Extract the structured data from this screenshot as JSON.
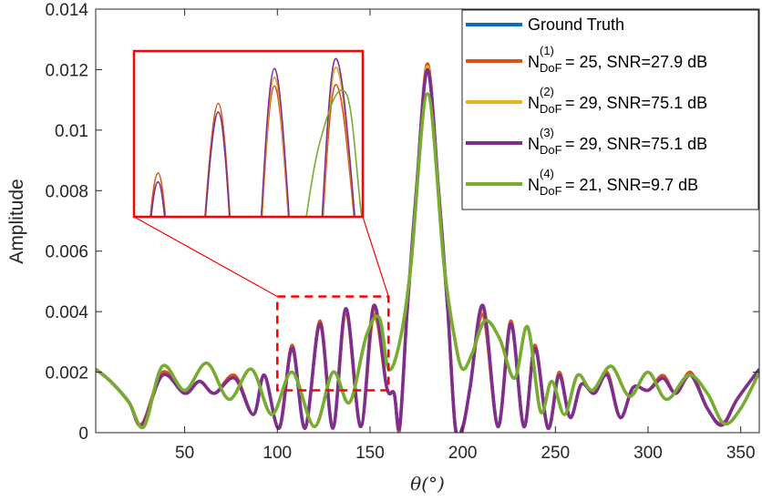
{
  "colors": {
    "ground_truth": "#0072BD",
    "n1": "#D95319",
    "n2": "#EDB120",
    "n3": "#7E2F8E",
    "n4": "#77AC30",
    "zoom": "#FF0000"
  },
  "chart_data": {
    "type": "line",
    "title": "",
    "xlabel": "θ(°)",
    "ylabel": "Amplitude",
    "xlim": [
      2,
      360
    ],
    "ylim": [
      0,
      0.014
    ],
    "xticks": [
      "50",
      "100",
      "150",
      "200",
      "250",
      "300",
      "350"
    ],
    "yticks": [
      "0",
      "0.002",
      "0.004",
      "0.006",
      "0.008",
      "0.01",
      "0.012",
      "0.014"
    ],
    "grid": false,
    "legend_position": "top-right",
    "legend": [
      {
        "key": "ground_truth",
        "main": "Ground Truth",
        "sup": "",
        "sub": "",
        "rest": ""
      },
      {
        "key": "n1",
        "main": "N",
        "sup": "(1)",
        "sub": "DoF",
        "rest": "= 25, SNR=27.9 dB"
      },
      {
        "key": "n2",
        "main": "N",
        "sup": "(2)",
        "sub": "DoF",
        "rest": "= 29, SNR=75.1 dB"
      },
      {
        "key": "n3",
        "main": "N",
        "sup": "(3)",
        "sub": "DoF",
        "rest": "= 29, SNR=75.1 dB"
      },
      {
        "key": "n4",
        "main": "N",
        "sup": "(4)",
        "sub": "DoF",
        "rest": "= 21, SNR=9.7 dB"
      }
    ],
    "zoom_region": {
      "x": [
        100,
        160
      ],
      "y": [
        0.0014,
        0.0045
      ]
    },
    "series": [
      {
        "key": "ground_truth",
        "x": [
          2,
          10,
          20,
          27,
          38,
          50,
          58,
          66,
          77,
          87,
          93,
          101,
          108,
          115,
          123,
          130,
          137,
          145,
          152,
          159,
          163,
          166,
          170,
          175,
          181,
          187,
          192,
          196,
          200,
          204,
          211,
          219,
          226,
          233,
          239,
          246,
          252,
          258,
          264,
          271,
          278,
          285,
          292,
          300,
          308,
          315,
          323,
          332,
          340,
          348,
          360
        ],
        "y": [
          0.0021,
          0.0017,
          0.001,
          0.00025,
          0.0019,
          0.0013,
          0.0017,
          0.0013,
          0.0018,
          0.0006,
          0.0019,
          0.00015,
          0.0028,
          0.00015,
          0.0036,
          0.00015,
          0.004,
          0.0002,
          0.0041,
          0.0015,
          0.0013,
          0.0002,
          0.004,
          0.008,
          0.0121,
          0.008,
          0.004,
          0.0002,
          0.0002,
          0.0015,
          0.0041,
          0.0002,
          0.0036,
          0.0002,
          0.0028,
          0.00015,
          0.0019,
          0.0005,
          0.0016,
          0.0013,
          0.0019,
          0.0005,
          0.0015,
          0.0014,
          0.0018,
          0.0013,
          0.0019,
          0.0008,
          0.00025,
          0.0011,
          0.0021
        ]
      },
      {
        "key": "n1",
        "x": [
          2,
          10,
          20,
          27,
          38,
          50,
          58,
          66,
          77,
          87,
          93,
          101,
          108,
          115,
          123,
          130,
          137,
          145,
          152,
          159,
          163,
          166,
          170,
          175,
          181,
          187,
          192,
          196,
          200,
          204,
          211,
          219,
          226,
          233,
          239,
          246,
          252,
          258,
          264,
          271,
          278,
          285,
          292,
          300,
          308,
          315,
          323,
          332,
          340,
          348,
          360
        ],
        "y": [
          0.0021,
          0.0017,
          0.001,
          0.0003,
          0.002,
          0.0013,
          0.0017,
          0.0013,
          0.0019,
          0.0006,
          0.0019,
          0.00015,
          0.0029,
          0.00015,
          0.0037,
          0.00015,
          0.0039,
          0.0002,
          0.0039,
          0.0015,
          0.0013,
          0.0001,
          0.004,
          0.008,
          0.0122,
          0.008,
          0.004,
          0.0001,
          0.0001,
          0.0015,
          0.0039,
          0.0002,
          0.0037,
          0.0002,
          0.0029,
          0.00015,
          0.002,
          0.0005,
          0.0016,
          0.0013,
          0.002,
          0.0005,
          0.0015,
          0.0014,
          0.0019,
          0.0013,
          0.002,
          0.0008,
          0.0003,
          0.0011,
          0.0021
        ]
      },
      {
        "key": "n2",
        "x": [
          2,
          10,
          20,
          27,
          38,
          50,
          58,
          66,
          77,
          87,
          93,
          101,
          108,
          115,
          123,
          130,
          137,
          145,
          152,
          159,
          163,
          166,
          170,
          175,
          181,
          187,
          192,
          196,
          200,
          204,
          211,
          219,
          226,
          233,
          239,
          246,
          252,
          258,
          264,
          271,
          278,
          285,
          292,
          300,
          308,
          315,
          323,
          332,
          340,
          348,
          360
        ],
        "y": [
          0.0021,
          0.0017,
          0.001,
          0.00025,
          0.0019,
          0.0013,
          0.0017,
          0.0013,
          0.0018,
          0.0006,
          0.0019,
          0.00015,
          0.0028,
          0.00015,
          0.0036,
          0.00015,
          0.004,
          0.0002,
          0.0041,
          0.0015,
          0.0013,
          0.0002,
          0.004,
          0.008,
          0.0121,
          0.008,
          0.004,
          0.0002,
          0.0002,
          0.0015,
          0.0041,
          0.0002,
          0.0036,
          0.0002,
          0.0028,
          0.00015,
          0.0019,
          0.0005,
          0.0016,
          0.0013,
          0.0019,
          0.0005,
          0.0015,
          0.0014,
          0.0018,
          0.0013,
          0.0019,
          0.0008,
          0.00025,
          0.0011,
          0.0021
        ]
      },
      {
        "key": "n3",
        "x": [
          2,
          10,
          20,
          27,
          38,
          50,
          58,
          66,
          77,
          87,
          93,
          101,
          108,
          115,
          123,
          130,
          137,
          145,
          152,
          159,
          163,
          166,
          170,
          175,
          181,
          187,
          192,
          196,
          200,
          204,
          211,
          219,
          226,
          233,
          239,
          246,
          252,
          258,
          264,
          271,
          278,
          285,
          292,
          300,
          308,
          315,
          323,
          332,
          340,
          348,
          360
        ],
        "y": [
          0.0021,
          0.0017,
          0.001,
          0.00025,
          0.0019,
          0.0013,
          0.0017,
          0.0013,
          0.0018,
          0.0006,
          0.0019,
          0.00015,
          0.0028,
          0.00015,
          0.0036,
          0.00015,
          0.0041,
          0.0002,
          0.0042,
          0.0015,
          0.0013,
          0.0002,
          0.004,
          0.008,
          0.012,
          0.008,
          0.004,
          0.0002,
          0.0002,
          0.0015,
          0.0042,
          0.0002,
          0.0036,
          0.0002,
          0.0028,
          0.00015,
          0.0019,
          0.0005,
          0.0016,
          0.0013,
          0.0019,
          0.0005,
          0.0015,
          0.0014,
          0.0018,
          0.0013,
          0.0019,
          0.0008,
          0.00025,
          0.0011,
          0.0021
        ]
      },
      {
        "key": "n4",
        "x": [
          2,
          10,
          20,
          28,
          38,
          50,
          62,
          74,
          86,
          97,
          108,
          120,
          130,
          139,
          148,
          155,
          160,
          166,
          172,
          181,
          190,
          196,
          200,
          205,
          212,
          220,
          228,
          235,
          242,
          248,
          255,
          262,
          270,
          280,
          290,
          300,
          310,
          322,
          332,
          341,
          350,
          360
        ],
        "y": [
          0.0021,
          0.0017,
          0.001,
          0.0002,
          0.0022,
          0.0014,
          0.0023,
          0.0011,
          0.0021,
          0.0006,
          0.002,
          0.0002,
          0.002,
          0.001,
          0.0032,
          0.0038,
          0.0021,
          0.003,
          0.0055,
          0.0112,
          0.0055,
          0.003,
          0.0021,
          0.0026,
          0.0037,
          0.0031,
          0.0018,
          0.0035,
          0.0007,
          0.0017,
          0.0006,
          0.0019,
          0.0014,
          0.0022,
          0.0012,
          0.002,
          0.0011,
          0.0019,
          0.0013,
          0.0003,
          0.0008,
          0.002
        ]
      }
    ]
  }
}
